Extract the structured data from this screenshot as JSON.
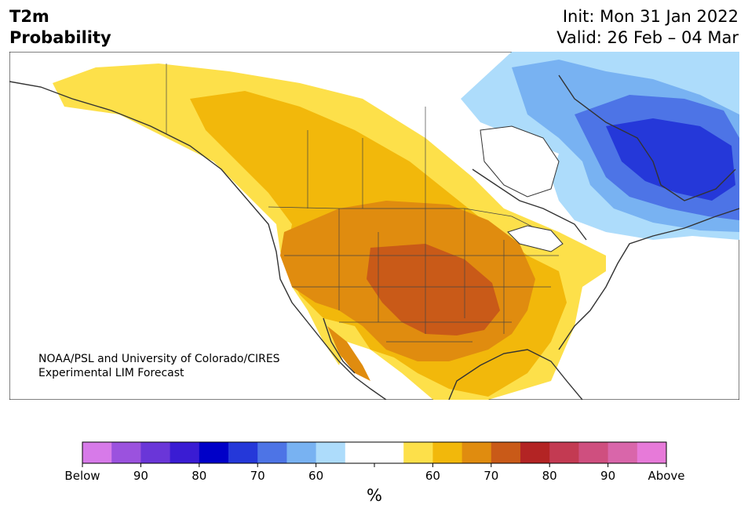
{
  "title": {
    "main": "T2m",
    "sub": "Probability",
    "init": "Init: Mon 31 Jan 2022",
    "valid": "Valid: 26 Feb – 04 Mar"
  },
  "credit": {
    "line1": "NOAA/PSL and University of Colorado/CIRES",
    "line2": "Experimental LIM Forecast"
  },
  "colorbar": {
    "unit": "%",
    "colors": [
      "#d77ae9",
      "#9b52de",
      "#6a36d8",
      "#3a1cd3",
      "#0000c8",
      "#2538d9",
      "#4d74e6",
      "#78b2f2",
      "#addcfb",
      "#ffffff",
      "#ffffff",
      "#fde04a",
      "#f2b80b",
      "#e08c0f",
      "#c95a18",
      "#b32424",
      "#c33a52",
      "#cf4f7f",
      "#d966aa",
      "#e77ad9"
    ],
    "tick_labels": [
      "Below",
      "90",
      "80",
      "70",
      "60",
      "",
      "60",
      "70",
      "80",
      "90",
      "Above"
    ]
  },
  "legend_colors": {
    "cold_light": "#addcfb",
    "cold_mid": "#78b2f2",
    "cold_strong": "#4d74e6",
    "cold_deep": "#2538d9",
    "warm_light": "#fde04a",
    "warm_mid": "#f2b80b",
    "warm_strong": "#e08c0f",
    "warm_deep": "#c95a18"
  }
}
